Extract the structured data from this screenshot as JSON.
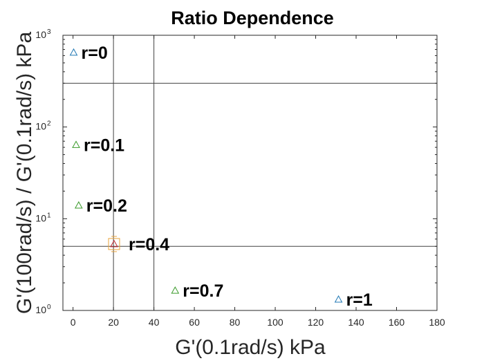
{
  "chart_data": {
    "type": "scatter",
    "title": "Ratio Dependence",
    "xlabel": "G'(0.1rad/s) kPa",
    "ylabel": "G'(100rad/s) / G'(0.1rad/s) kPa",
    "xlim": [
      -5,
      180
    ],
    "ylim": [
      1,
      1000
    ],
    "yscale": "log",
    "x_ticks": [
      0,
      20,
      40,
      60,
      80,
      100,
      120,
      140,
      160,
      180
    ],
    "x_tick_labels": [
      "0",
      "20",
      "40",
      "60",
      "80",
      "100",
      "120",
      "140",
      "160",
      "180"
    ],
    "y_ticks": [
      {
        "value": 1,
        "base": "10",
        "exp": "0"
      },
      {
        "value": 10,
        "base": "10",
        "exp": "1"
      },
      {
        "value": 100,
        "base": "10",
        "exp": "2"
      },
      {
        "value": 1000,
        "base": "10",
        "exp": "3"
      }
    ],
    "grid": false,
    "reference_lines": {
      "vertical": [
        20,
        40
      ],
      "horizontal": [
        300,
        5
      ]
    },
    "points": [
      {
        "label": "r=0",
        "x": 0.3,
        "y": 650,
        "marker": "triangle",
        "color": "#1f77b4"
      },
      {
        "label": "r=0.1",
        "x": 1.5,
        "y": 64,
        "marker": "triangle",
        "color": "#3a9a2a"
      },
      {
        "label": "r=0.2",
        "x": 2.8,
        "y": 14,
        "marker": "triangle",
        "color": "#3a9a2a"
      },
      {
        "label": "r=0.4",
        "x": 20.3,
        "y": 5.3,
        "marker": "triangle",
        "color": "#c1272d"
      },
      {
        "label": "r=0.7",
        "x": 50.5,
        "y": 1.65,
        "marker": "triangle",
        "color": "#3a9a2a"
      },
      {
        "label": "r=1",
        "x": 131.3,
        "y": 1.32,
        "marker": "triangle",
        "color": "#1f77b4"
      }
    ],
    "errorbar_points": [
      {
        "x": 20.3,
        "y": 5.3,
        "color": "#e8a33a"
      }
    ]
  },
  "colors": {
    "axis": "#262626",
    "reference_line": "#404040"
  }
}
